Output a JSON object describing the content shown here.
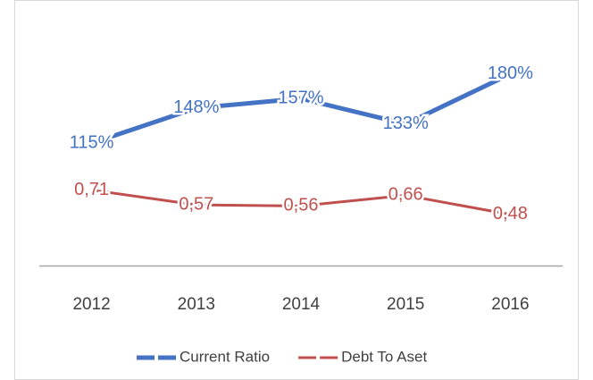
{
  "chart_data": {
    "type": "line",
    "categories": [
      "2012",
      "2013",
      "2014",
      "2015",
      "2016"
    ],
    "series": [
      {
        "name": "Current Ratio",
        "color": "#4472c4",
        "values": [
          115,
          148,
          157,
          133,
          180
        ],
        "value_labels": [
          "115%",
          "148%",
          "157%",
          "133%",
          "180%"
        ]
      },
      {
        "name": "Debt To Aset",
        "color": "#c0504d",
        "axis": "y2",
        "values": [
          0.71,
          0.57,
          0.56,
          0.66,
          0.48
        ],
        "value_labels": [
          "0,71",
          "0,57",
          "0,56",
          "0,66",
          "0,48"
        ]
      }
    ],
    "ylim": [
      0,
      200
    ],
    "y2lim": [
      0,
      2
    ],
    "legend": "bottom"
  }
}
